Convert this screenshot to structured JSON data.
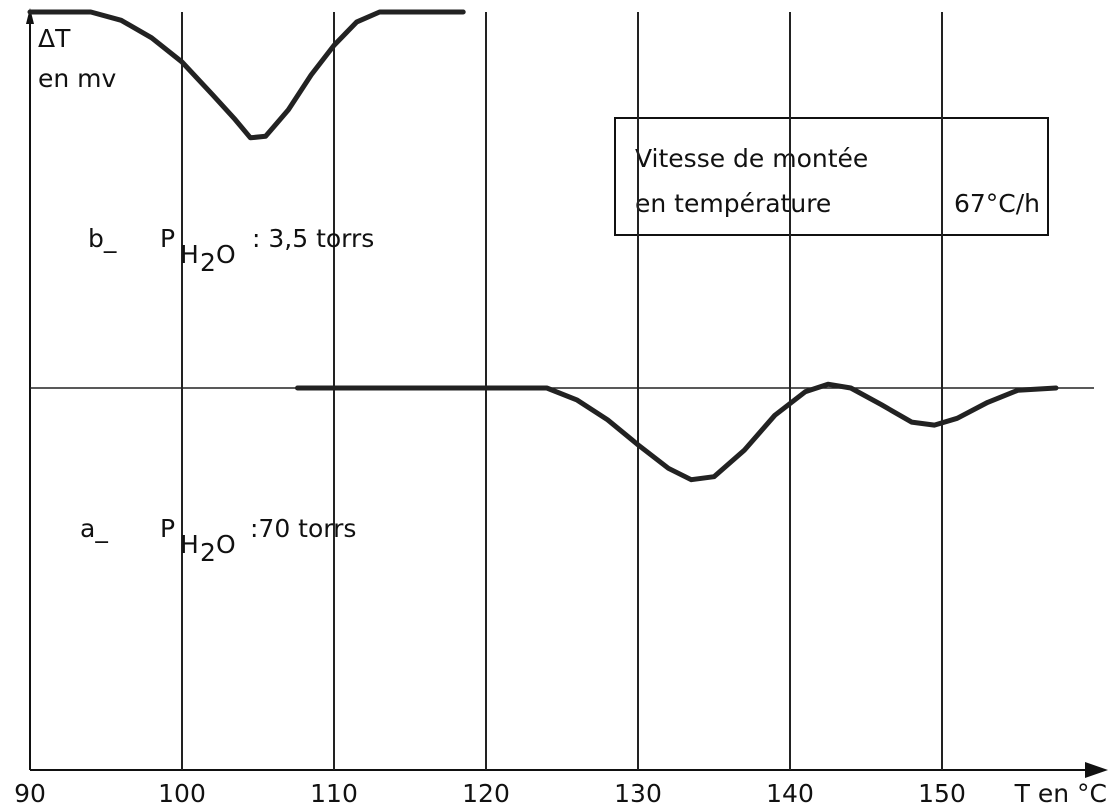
{
  "chart_data": {
    "type": "line",
    "y_label": [
      "ΔT",
      "en mv"
    ],
    "x_label": "T en °C",
    "xlim": [
      90,
      160
    ],
    "xticks": [
      90,
      100,
      110,
      120,
      130,
      140,
      150
    ],
    "ylim": [
      -100,
      0
    ],
    "grid": true,
    "color": "#222222",
    "series": [
      {
        "x": [
          90,
          94,
          96,
          98,
          100,
          102,
          103.5,
          104.5,
          105.5,
          107,
          108.5,
          110,
          111.5,
          113,
          118.5
        ],
        "values": [
          0,
          0,
          -1.1,
          -3.4,
          -6.6,
          -10.9,
          -14.2,
          -16.6,
          -16.4,
          -12.9,
          -8.3,
          -4.4,
          -1.3,
          0,
          0
        ]
      },
      {
        "x": [
          107.6,
          124,
          126,
          128,
          130,
          132,
          133.5,
          135,
          137,
          139,
          141,
          142.5,
          144,
          146,
          148,
          149.5,
          151,
          153,
          155,
          157.5
        ],
        "values": [
          -49.6,
          -49.6,
          -51.2,
          -53.8,
          -57.1,
          -60.2,
          -61.7,
          -61.3,
          -57.8,
          -53.2,
          -50.1,
          -49.1,
          -49.6,
          -51.8,
          -54.1,
          -54.5,
          -53.6,
          -51.5,
          -49.9,
          -49.6
        ]
      }
    ],
    "annotations": [
      {
        "prefix": "b_",
        "symbol": "P",
        "subscript": [
          "H",
          "2",
          "O"
        ],
        "text": ": 3,5 torrs"
      },
      {
        "prefix": "a_",
        "symbol": "P",
        "subscript": [
          "H",
          "2",
          "O"
        ],
        "text": ":70  torrs"
      }
    ],
    "box": [
      "Vitesse de montée",
      "en température",
      "67°C/h"
    ]
  }
}
